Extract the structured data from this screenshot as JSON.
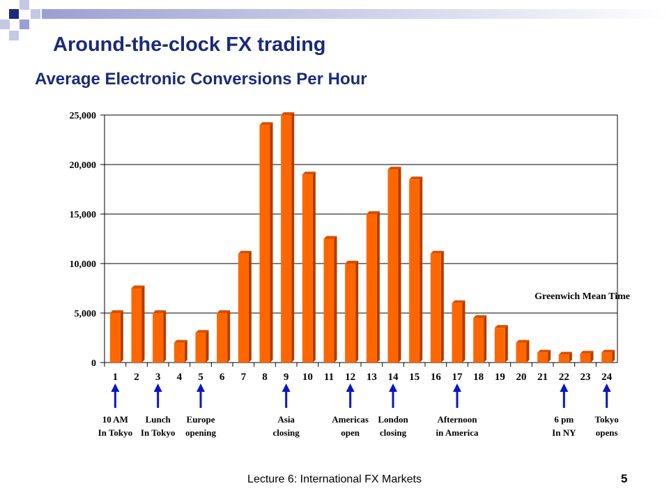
{
  "slide": {
    "title": "Around-the-clock FX trading",
    "subtitle": "Average Electronic Conversions Per Hour",
    "footer": "Lecture 6: International FX Markets",
    "page_number": "5",
    "accent_color": "#1b2a7a"
  },
  "chart_data": {
    "type": "bar",
    "title": "",
    "xlabel": "",
    "ylabel": "",
    "annotation": "Greenwich Mean Time",
    "categories": [
      "1",
      "2",
      "3",
      "4",
      "5",
      "6",
      "7",
      "8",
      "9",
      "10",
      "11",
      "12",
      "13",
      "14",
      "15",
      "16",
      "17",
      "18",
      "19",
      "20",
      "21",
      "22",
      "23",
      "24"
    ],
    "values": [
      5000,
      7500,
      5000,
      2000,
      3000,
      5000,
      11000,
      24000,
      25000,
      19000,
      12500,
      10000,
      15000,
      19500,
      18500,
      11000,
      6000,
      4500,
      3500,
      2000,
      1000,
      800,
      900,
      1000
    ],
    "ylim": [
      0,
      25000
    ],
    "yticks": [
      0,
      5000,
      10000,
      15000,
      20000,
      25000
    ],
    "ytick_labels": [
      "0",
      "5,000",
      "10,000",
      "15,000",
      "20,000",
      "25,000"
    ],
    "grid": true,
    "bar_color": "#ff6600",
    "bar_side_color": "#b33c00",
    "events": [
      {
        "hour": 1,
        "line1": "10 AM",
        "line2": "In Tokyo"
      },
      {
        "hour": 3,
        "line1": "Lunch",
        "line2": "In Tokyo"
      },
      {
        "hour": 5,
        "line1": "Europe",
        "line2": "opening"
      },
      {
        "hour": 9,
        "line1": "Asia",
        "line2": "closing"
      },
      {
        "hour": 12,
        "line1": "Americas",
        "line2": "open"
      },
      {
        "hour": 14,
        "line1": "London",
        "line2": "closing"
      },
      {
        "hour": 17,
        "line1": "Afternoon",
        "line2": "in America"
      },
      {
        "hour": 22,
        "line1": "6 pm",
        "line2": "In NY"
      },
      {
        "hour": 24,
        "line1": "Tokyo",
        "line2": "opens"
      }
    ],
    "arrow_color": "#0a14c8"
  }
}
